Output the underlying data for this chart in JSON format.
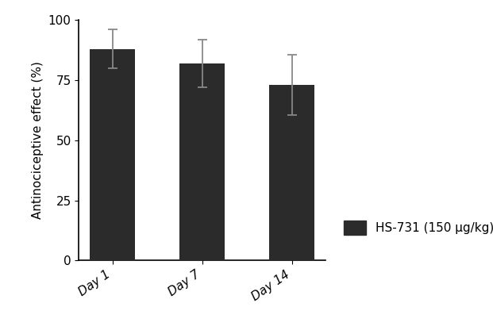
{
  "categories": [
    "Day 1",
    "Day 7",
    "Day 14"
  ],
  "values": [
    88.0,
    82.0,
    73.0
  ],
  "errors": [
    8.0,
    10.0,
    12.5
  ],
  "bar_color": "#2b2b2b",
  "error_color": "#888888",
  "ylabel": "Antinociceptive effect (%)",
  "ylim": [
    0,
    100
  ],
  "yticks": [
    0,
    25,
    50,
    75,
    100
  ],
  "legend_label": "HS-731 (150 μg/kg)",
  "background_color": "#ffffff",
  "bar_width": 0.5,
  "ylabel_fontsize": 11,
  "tick_fontsize": 11,
  "legend_fontsize": 11
}
